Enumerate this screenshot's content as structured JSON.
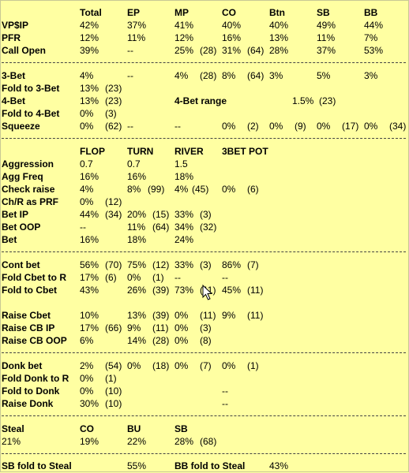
{
  "sec1": {
    "headers": [
      "Total",
      "EP",
      "MP",
      "CO",
      "Btn",
      "SB",
      "BB"
    ],
    "rows": [
      {
        "label": "VP$IP",
        "cells": [
          "42%",
          "37%",
          "41%",
          "40%",
          "40%",
          "49%",
          "44%"
        ]
      },
      {
        "label": "PFR",
        "cells": [
          "12%",
          "11%",
          "12%",
          "16%",
          "13%",
          "11%",
          "7%"
        ]
      },
      {
        "label": "Call Open",
        "cells": [
          "39%",
          "--",
          "25%",
          "(28)",
          "31%",
          "(64)",
          "28%",
          "37%",
          "53%"
        ]
      }
    ]
  },
  "sec2": {
    "rows": [
      {
        "label": "3-Bet",
        "cells": [
          "4%",
          "--",
          "4%",
          "(28)",
          "8%",
          "(64)",
          "3%",
          "5%",
          "3%"
        ]
      },
      {
        "label": "Fold to 3-Bet",
        "cells": [
          "13%",
          "(23)"
        ]
      },
      {
        "label": "4-Bet",
        "cells": [
          "13%",
          "(23)"
        ],
        "range_label": "4-Bet range",
        "range_cells": [
          "1.5%",
          "(23)"
        ]
      },
      {
        "label": "Fold to 4-Bet",
        "cells": [
          "0%",
          "(3)"
        ]
      },
      {
        "label": "Squeeze",
        "cells": [
          "0%",
          "(62)",
          "--",
          "--",
          "0%",
          "(2)",
          "0%",
          "(9)",
          "0%",
          "(17)",
          "0%",
          "(34)"
        ]
      }
    ]
  },
  "sec3": {
    "headers": [
      "FLOP",
      "TURN",
      "RIVER",
      "3BET POT"
    ],
    "rows": [
      {
        "label": "Aggression",
        "cells": [
          "0.7",
          "0.7",
          "1.5"
        ]
      },
      {
        "label": "Agg Freq",
        "cells": [
          "16%",
          "16%",
          "18%"
        ]
      },
      {
        "label": "Check raise",
        "cells": [
          "4%",
          "8%",
          "(99)",
          "4%",
          "(45)",
          "0%",
          "(6)"
        ]
      },
      {
        "label": "Ch/R as PRF",
        "cells": [
          "0%",
          "(12)"
        ]
      },
      {
        "label": "Bet IP",
        "cells": [
          "44%",
          "(34)",
          "20%",
          "(15)",
          "33%",
          "(3)"
        ]
      },
      {
        "label": "Bet OOP",
        "cells": [
          "--",
          "11%",
          "(64)",
          "34%",
          "(32)"
        ]
      },
      {
        "label": "Bet",
        "cells": [
          "16%",
          "18%",
          "24%"
        ]
      }
    ]
  },
  "sec4": {
    "rows": [
      {
        "label": "Cont bet",
        "cells": [
          "56%",
          "(70)",
          "75%",
          "(12)",
          "33%",
          "(3)",
          "86%",
          "(7)"
        ]
      },
      {
        "label": "Fold Cbet to R",
        "cells": [
          "17%",
          "(6)",
          "0%",
          "(1)",
          "--",
          "--"
        ]
      },
      {
        "label": "Fold to Cbet",
        "cells": [
          "43%",
          "26%",
          "(39)",
          "73%",
          "(11)",
          "45%",
          "(11)"
        ]
      },
      {
        "label": "Raise Cbet",
        "cells": [
          "10%",
          "13%",
          "(39)",
          "0%",
          "(11)",
          "9%",
          "(11)"
        ]
      },
      {
        "label": "Raise CB IP",
        "cells": [
          "17%",
          "(66)",
          "9%",
          "(11)",
          "0%",
          "(3)"
        ]
      },
      {
        "label": "Raise CB OOP",
        "cells": [
          "6%",
          "14%",
          "(28)",
          "0%",
          "(8)"
        ]
      }
    ]
  },
  "sec5": {
    "rows": [
      {
        "label": "Donk bet",
        "cells": [
          "2%",
          "(54)",
          "0%",
          "(18)",
          "0%",
          "(7)",
          "0%",
          "(1)"
        ]
      },
      {
        "label": "Fold Donk to R",
        "cells": [
          "0%",
          "(1)"
        ]
      },
      {
        "label": "Fold to Donk",
        "cells": [
          "0%",
          "(10)",
          "--"
        ]
      },
      {
        "label": "Raise Donk",
        "cells": [
          "30%",
          "(10)",
          "--"
        ]
      }
    ]
  },
  "sec6": {
    "label": "Steal",
    "headers": [
      "CO",
      "BU",
      "SB"
    ],
    "cells": [
      "21%",
      "19%",
      "22%",
      "28%",
      "(68)"
    ]
  },
  "sec7": {
    "sb_label": "SB fold to Steal",
    "sb_value": "55%",
    "bb_label": "BB fold to Steal",
    "bb_value": "43%"
  }
}
